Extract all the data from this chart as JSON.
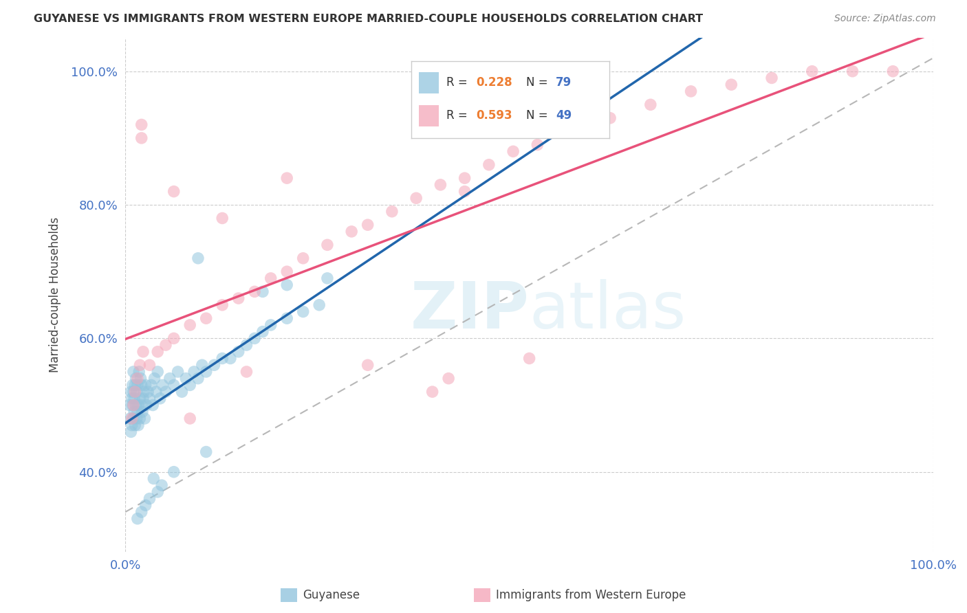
{
  "title": "GUYANESE VS IMMIGRANTS FROM WESTERN EUROPE MARRIED-COUPLE HOUSEHOLDS CORRELATION CHART",
  "source": "Source: ZipAtlas.com",
  "ylabel": "Married-couple Households",
  "legend_label1": "Guyanese",
  "legend_label2": "Immigrants from Western Europe",
  "R1": 0.228,
  "N1": 79,
  "R2": 0.593,
  "N2": 49,
  "color_blue": "#92c5de",
  "color_pink": "#f4a7b9",
  "color_line_blue": "#2166ac",
  "color_line_pink": "#e8527a",
  "color_dash": "#aaaaaa",
  "color_text_blue": "#4472c4",
  "color_text_orange": "#ed7d31",
  "bg_color": "#ffffff",
  "grid_color": "#cccccc",
  "title_color": "#333333",
  "source_color": "#888888",
  "blue_x": [
    0.005,
    0.006,
    0.007,
    0.007,
    0.008,
    0.008,
    0.009,
    0.009,
    0.01,
    0.01,
    0.01,
    0.011,
    0.011,
    0.012,
    0.012,
    0.013,
    0.013,
    0.014,
    0.014,
    0.015,
    0.015,
    0.016,
    0.016,
    0.017,
    0.018,
    0.018,
    0.019,
    0.02,
    0.02,
    0.021,
    0.022,
    0.023,
    0.024,
    0.025,
    0.026,
    0.028,
    0.03,
    0.032,
    0.034,
    0.036,
    0.038,
    0.04,
    0.043,
    0.046,
    0.05,
    0.055,
    0.06,
    0.065,
    0.07,
    0.075,
    0.08,
    0.085,
    0.09,
    0.095,
    0.1,
    0.11,
    0.12,
    0.13,
    0.14,
    0.15,
    0.16,
    0.17,
    0.18,
    0.2,
    0.22,
    0.24,
    0.09,
    0.045,
    0.03,
    0.025,
    0.02,
    0.015,
    0.1,
    0.06,
    0.04,
    0.035,
    0.17,
    0.2,
    0.25
  ],
  "blue_y": [
    0.5,
    0.48,
    0.52,
    0.46,
    0.51,
    0.47,
    0.5,
    0.53,
    0.48,
    0.52,
    0.55,
    0.49,
    0.51,
    0.47,
    0.53,
    0.5,
    0.54,
    0.48,
    0.52,
    0.49,
    0.53,
    0.5,
    0.47,
    0.55,
    0.51,
    0.48,
    0.54,
    0.5,
    0.53,
    0.49,
    0.51,
    0.52,
    0.48,
    0.53,
    0.5,
    0.52,
    0.51,
    0.53,
    0.5,
    0.54,
    0.52,
    0.55,
    0.51,
    0.53,
    0.52,
    0.54,
    0.53,
    0.55,
    0.52,
    0.54,
    0.53,
    0.55,
    0.54,
    0.56,
    0.55,
    0.56,
    0.57,
    0.57,
    0.58,
    0.59,
    0.6,
    0.61,
    0.62,
    0.63,
    0.64,
    0.65,
    0.72,
    0.38,
    0.36,
    0.35,
    0.34,
    0.33,
    0.43,
    0.4,
    0.37,
    0.39,
    0.67,
    0.68,
    0.69
  ],
  "pink_x": [
    0.008,
    0.01,
    0.012,
    0.015,
    0.018,
    0.022,
    0.03,
    0.04,
    0.05,
    0.06,
    0.08,
    0.1,
    0.12,
    0.14,
    0.16,
    0.18,
    0.2,
    0.22,
    0.25,
    0.28,
    0.3,
    0.33,
    0.36,
    0.39,
    0.42,
    0.45,
    0.48,
    0.51,
    0.55,
    0.6,
    0.65,
    0.7,
    0.75,
    0.8,
    0.85,
    0.9,
    0.95,
    0.06,
    0.12,
    0.2,
    0.3,
    0.4,
    0.08,
    0.02,
    0.5,
    0.38,
    0.42,
    0.02,
    0.15
  ],
  "pink_y": [
    0.48,
    0.5,
    0.52,
    0.54,
    0.56,
    0.58,
    0.56,
    0.58,
    0.59,
    0.6,
    0.62,
    0.63,
    0.65,
    0.66,
    0.67,
    0.69,
    0.7,
    0.72,
    0.74,
    0.76,
    0.77,
    0.79,
    0.81,
    0.83,
    0.84,
    0.86,
    0.88,
    0.89,
    0.91,
    0.93,
    0.95,
    0.97,
    0.98,
    0.99,
    1.0,
    1.0,
    1.0,
    0.82,
    0.78,
    0.84,
    0.56,
    0.54,
    0.48,
    0.92,
    0.57,
    0.52,
    0.82,
    0.9,
    0.55
  ],
  "xlim": [
    0.0,
    1.0
  ],
  "ylim": [
    0.28,
    1.05
  ]
}
